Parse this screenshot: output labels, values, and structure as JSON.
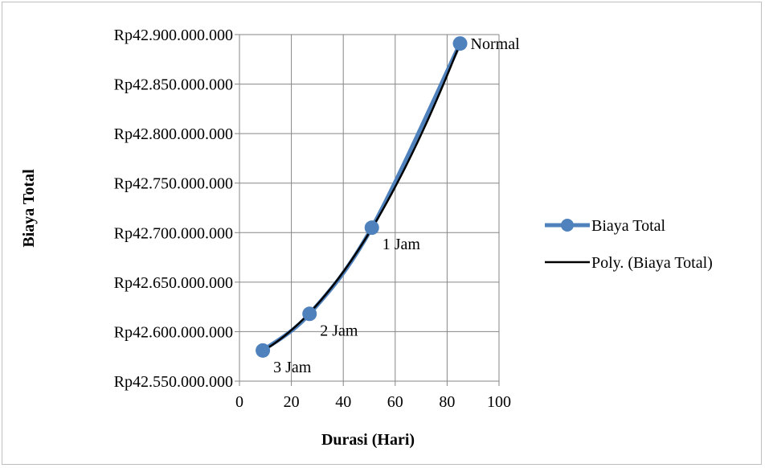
{
  "chart_data": {
    "type": "scatter",
    "title": "",
    "xlabel": "Durasi (Hari)",
    "ylabel": "Biaya Total",
    "xlim": [
      0,
      100
    ],
    "ylim": [
      42550000000,
      42900000000
    ],
    "x_ticks": [
      "0",
      "20",
      "40",
      "60",
      "80",
      "100"
    ],
    "y_ticks": [
      "Rp42.550.000.000",
      "Rp42.600.000.000",
      "Rp42.650.000.000",
      "Rp42.700.000.000",
      "Rp42.750.000.000",
      "Rp42.800.000.000",
      "Rp42.850.000.000",
      "Rp42.900.000.000"
    ],
    "grid": true,
    "legend_position": "right",
    "series": [
      {
        "name": "Biaya Total",
        "color": "#4f81bd",
        "points": [
          {
            "x": 9,
            "y": 42581000000,
            "label": "3 Jam"
          },
          {
            "x": 27,
            "y": 42618000000,
            "label": "2 Jam"
          },
          {
            "x": 51,
            "y": 42705000000,
            "label": "1 Jam"
          },
          {
            "x": 85,
            "y": 42891000000,
            "label": "Normal"
          }
        ]
      },
      {
        "name": "Poly. (Biaya Total)",
        "color": "#000000",
        "trendline": "polynomial"
      }
    ]
  }
}
